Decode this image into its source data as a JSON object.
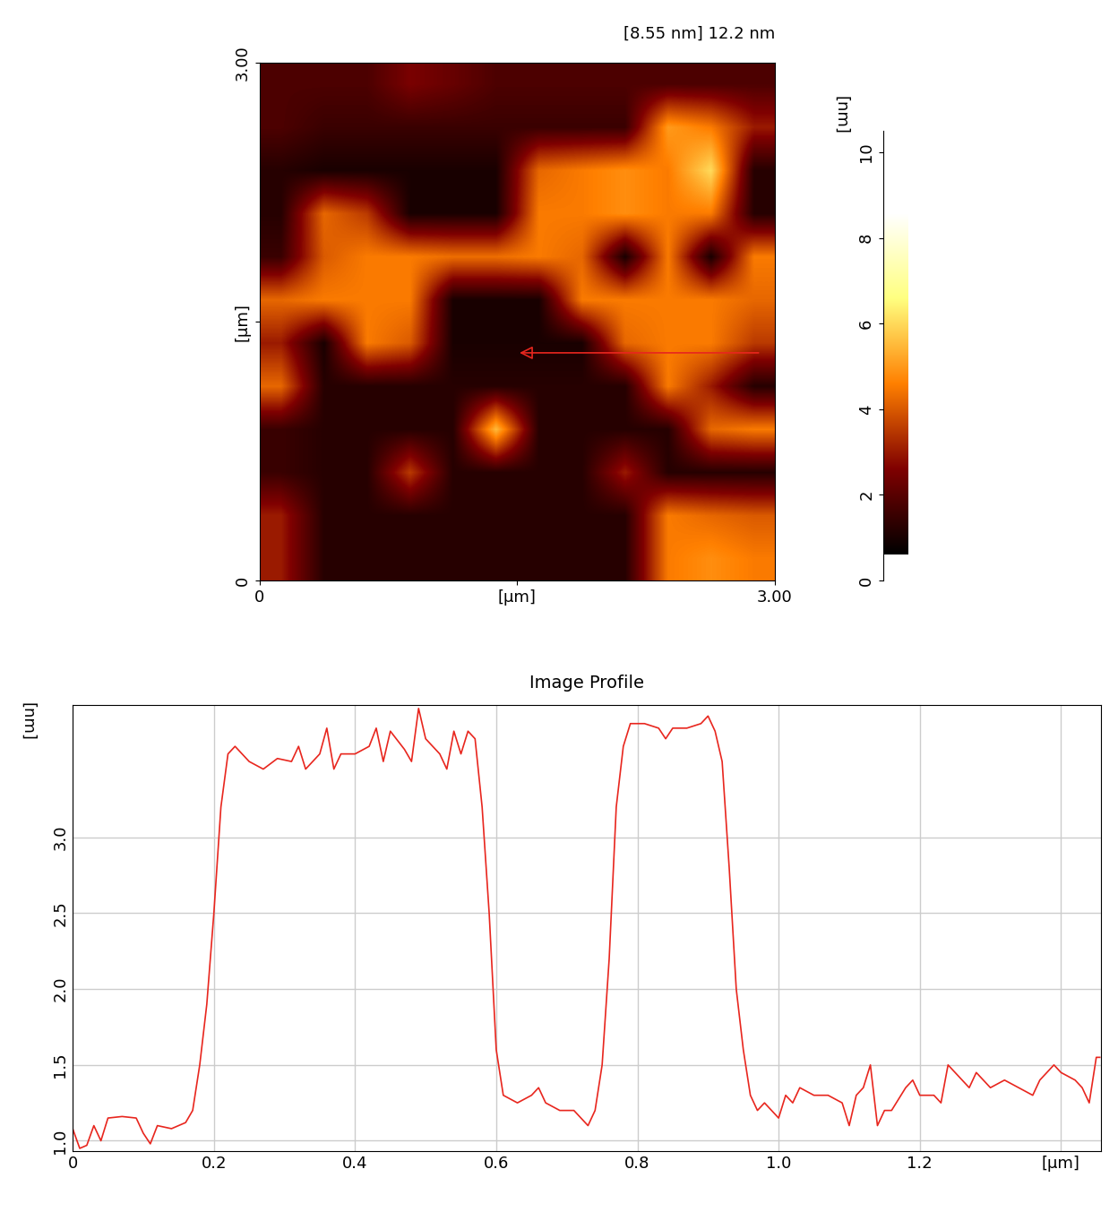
{
  "chart_data": [
    {
      "type": "heatmap",
      "title": "[8.55 nm] 12.2 nm",
      "xlim": [
        0,
        3
      ],
      "ylim": [
        0,
        3
      ],
      "xticks": [
        0,
        {
          "value": 1.5,
          "label": "[µm]"
        },
        {
          "value": 3,
          "label": "3.00"
        }
      ],
      "yticks": [
        0,
        {
          "value": 1.5,
          "label": "[µm]"
        },
        {
          "value": 3,
          "label": "3.00"
        }
      ],
      "color_range": [
        0.6,
        8.55
      ],
      "colorbar_lim": [
        0,
        10.5
      ],
      "colorbar_ticks": [
        0,
        2,
        4,
        6,
        8,
        10
      ],
      "colorbar_label": "[nm]",
      "profile_line": {
        "x": [
          2.92,
          1.5
        ],
        "y": [
          1.32,
          1.32
        ],
        "color": "#e8261e"
      },
      "cells": [
        [
          1.8,
          1.8,
          1.8,
          2.5,
          2.2,
          1.8,
          1.8,
          1.8,
          1.8,
          1.8,
          1.8,
          1.8
        ],
        [
          1.8,
          1.5,
          1.5,
          1.5,
          1.5,
          1.5,
          1.5,
          1.5,
          1.5,
          5.0,
          4.5,
          3.0
        ],
        [
          1.2,
          1.0,
          1.0,
          1.0,
          1.0,
          1.0,
          4.2,
          4.5,
          4.8,
          4.5,
          6.0,
          1.2
        ],
        [
          1.2,
          4.2,
          3.5,
          1.0,
          1.0,
          1.0,
          4.5,
          4.5,
          4.8,
          4.5,
          4.5,
          1.2
        ],
        [
          1.5,
          4.0,
          4.5,
          4.5,
          4.3,
          4.3,
          4.5,
          4.2,
          1.0,
          4.5,
          1.0,
          4.5
        ],
        [
          4.2,
          4.5,
          4.5,
          4.5,
          1.0,
          1.0,
          1.0,
          4.5,
          4.5,
          4.5,
          4.5,
          4.2
        ],
        [
          3.0,
          1.0,
          4.5,
          4.0,
          1.0,
          1.0,
          1.0,
          1.0,
          4.2,
          4.5,
          4.5,
          3.5
        ],
        [
          4.2,
          1.2,
          1.2,
          1.2,
          1.2,
          1.2,
          1.2,
          1.2,
          1.2,
          4.5,
          3.0,
          1.2
        ],
        [
          1.5,
          1.2,
          1.2,
          1.2,
          1.2,
          5.5,
          1.2,
          1.2,
          1.2,
          1.2,
          4.2,
          4.5
        ],
        [
          1.5,
          1.2,
          1.2,
          3.5,
          1.2,
          1.2,
          1.2,
          1.2,
          3.0,
          1.2,
          1.2,
          1.2
        ],
        [
          3.0,
          1.2,
          1.2,
          1.2,
          1.2,
          1.2,
          1.2,
          1.2,
          1.2,
          4.5,
          4.2,
          4.0
        ],
        [
          3.0,
          1.2,
          1.2,
          1.2,
          1.2,
          1.2,
          1.2,
          1.2,
          1.2,
          4.5,
          4.8,
          4.5
        ]
      ]
    },
    {
      "type": "line",
      "title": "Image Profile",
      "y_label": "[nm]",
      "xlim": [
        0,
        1.457
      ],
      "ylim": [
        0.93,
        3.87
      ],
      "xticks": [
        0,
        0.2,
        0.4,
        0.6,
        0.8,
        1.0,
        1.2,
        {
          "value": 1.4,
          "label": "[µm]"
        }
      ],
      "yticks": [
        1.0,
        1.5,
        2.0,
        2.5,
        3.0
      ],
      "grid": true,
      "color": "#e8261e",
      "x": [
        0,
        0.01,
        0.02,
        0.03,
        0.04,
        0.05,
        0.07,
        0.09,
        0.1,
        0.11,
        0.12,
        0.14,
        0.16,
        0.17,
        0.18,
        0.19,
        0.2,
        0.21,
        0.22,
        0.23,
        0.25,
        0.27,
        0.29,
        0.31,
        0.32,
        0.33,
        0.35,
        0.36,
        0.37,
        0.38,
        0.4,
        0.42,
        0.43,
        0.44,
        0.45,
        0.47,
        0.48,
        0.49,
        0.5,
        0.52,
        0.53,
        0.54,
        0.55,
        0.56,
        0.57,
        0.58,
        0.59,
        0.6,
        0.61,
        0.63,
        0.65,
        0.66,
        0.67,
        0.69,
        0.71,
        0.72,
        0.73,
        0.74,
        0.75,
        0.76,
        0.77,
        0.78,
        0.79,
        0.81,
        0.83,
        0.84,
        0.85,
        0.87,
        0.89,
        0.9,
        0.91,
        0.92,
        0.93,
        0.94,
        0.95,
        0.96,
        0.97,
        0.98,
        0.99,
        1.0,
        1.01,
        1.02,
        1.03,
        1.05,
        1.07,
        1.09,
        1.1,
        1.11,
        1.12,
        1.13,
        1.14,
        1.15,
        1.16,
        1.18,
        1.19,
        1.2,
        1.22,
        1.23,
        1.24,
        1.26,
        1.27,
        1.28,
        1.3,
        1.32,
        1.34,
        1.36,
        1.37,
        1.39,
        1.4,
        1.42,
        1.43,
        1.44,
        1.45,
        1.455
      ],
      "values": [
        1.08,
        0.95,
        0.97,
        1.1,
        1.0,
        1.15,
        1.16,
        1.15,
        1.05,
        0.98,
        1.1,
        1.08,
        1.12,
        1.2,
        1.5,
        1.9,
        2.5,
        3.2,
        3.55,
        3.6,
        3.5,
        3.45,
        3.52,
        3.5,
        3.6,
        3.45,
        3.55,
        3.72,
        3.45,
        3.55,
        3.55,
        3.6,
        3.72,
        3.5,
        3.7,
        3.58,
        3.5,
        3.85,
        3.65,
        3.55,
        3.45,
        3.7,
        3.55,
        3.7,
        3.65,
        3.2,
        2.5,
        1.6,
        1.3,
        1.25,
        1.3,
        1.35,
        1.25,
        1.2,
        1.2,
        1.15,
        1.1,
        1.2,
        1.5,
        2.2,
        3.2,
        3.6,
        3.75,
        3.75,
        3.72,
        3.65,
        3.72,
        3.72,
        3.75,
        3.8,
        3.7,
        3.5,
        2.8,
        2.0,
        1.6,
        1.3,
        1.2,
        1.25,
        1.2,
        1.15,
        1.3,
        1.25,
        1.35,
        1.3,
        1.3,
        1.25,
        1.1,
        1.3,
        1.35,
        1.5,
        1.1,
        1.2,
        1.2,
        1.35,
        1.4,
        1.3,
        1.3,
        1.25,
        1.5,
        1.4,
        1.35,
        1.45,
        1.35,
        1.4,
        1.35,
        1.3,
        1.4,
        1.5,
        1.45,
        1.4,
        1.35,
        1.25,
        1.55,
        1.55
      ]
    }
  ]
}
